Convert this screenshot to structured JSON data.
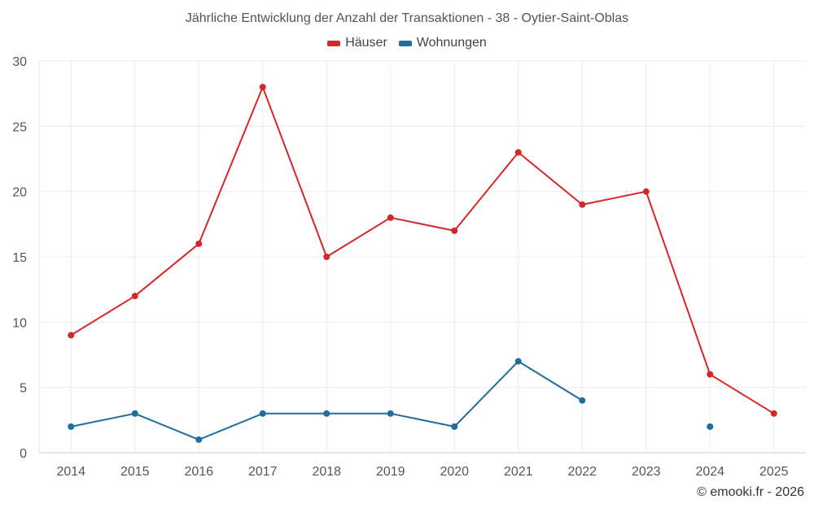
{
  "chart_data": {
    "type": "line",
    "title": "Jährliche Entwicklung der Anzahl der Transaktionen - 38 - Oytier-Saint-Oblas",
    "xlabel": "",
    "ylabel": "",
    "categories": [
      "2014",
      "2015",
      "2016",
      "2017",
      "2018",
      "2019",
      "2020",
      "2021",
      "2022",
      "2023",
      "2024",
      "2025"
    ],
    "ylim": [
      0,
      30
    ],
    "yticks": [
      0,
      5,
      10,
      15,
      20,
      25,
      30
    ],
    "grid": true,
    "legend_position": "top-center",
    "series": [
      {
        "name": "Häuser",
        "color": "#d62728",
        "values": [
          9,
          12,
          16,
          28,
          15,
          18,
          17,
          23,
          19,
          20,
          6,
          3
        ]
      },
      {
        "name": "Wohnungen",
        "color": "#1f6e9f",
        "values": [
          2,
          3,
          1,
          3,
          3,
          3,
          2,
          7,
          4,
          null,
          2,
          null
        ]
      }
    ]
  },
  "credit": "© emooki.fr - 2026"
}
